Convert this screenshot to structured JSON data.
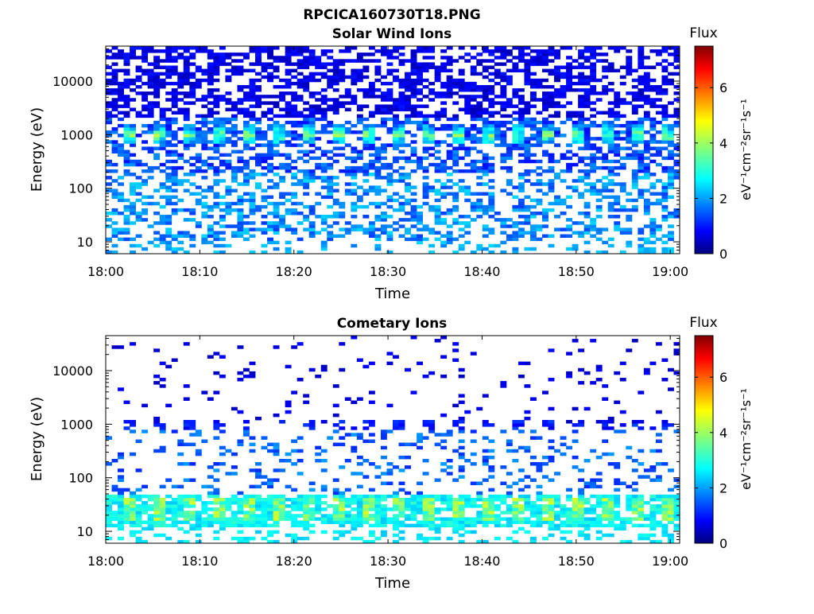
{
  "figure": {
    "title": "RPCICA160730T18.PNG"
  },
  "colorbar": {
    "label": "Flux",
    "units_text": "eV⁻¹cm⁻²sr⁻¹s⁻¹",
    "range": [
      0,
      7.5
    ],
    "ticks": [
      "0",
      "2",
      "4",
      "6"
    ],
    "tick_values": [
      0,
      2,
      4,
      6
    ],
    "colormap": "jet"
  },
  "chart_data": [
    {
      "type": "heatmap",
      "title": "Solar Wind Ions",
      "xlabel": "Time",
      "ylabel": "Energy (eV)",
      "x_range": [
        "18:00",
        "19:01"
      ],
      "x_ticks": [
        "18:00",
        "18:10",
        "18:20",
        "18:30",
        "18:40",
        "18:50",
        "19:00"
      ],
      "y_scale": "log",
      "y_range_eV": [
        6,
        45000
      ],
      "y_ticks": [
        "10",
        "100",
        "1000",
        "10000"
      ],
      "y_tick_values": [
        10,
        100,
        1000,
        10000
      ],
      "c_range": [
        0,
        7.5
      ],
      "features": {
        "solar_wind_peak_eV": 1000,
        "solar_wind_peak_flux": 4.0,
        "periodic_peak_interval_min": 3.2,
        "low_energy_band_eV": [
          10,
          60
        ],
        "low_energy_flux": 2.3,
        "background_flux_high_energy": 1.0
      }
    },
    {
      "type": "heatmap",
      "title": "Cometary Ions",
      "xlabel": "Time",
      "ylabel": "Energy (eV)",
      "x_range": [
        "18:00",
        "19:01"
      ],
      "x_ticks": [
        "18:00",
        "18:10",
        "18:20",
        "18:30",
        "18:40",
        "18:50",
        "19:00"
      ],
      "y_scale": "log",
      "y_range_eV": [
        6,
        45000
      ],
      "y_ticks": [
        "10",
        "100",
        "1000",
        "10000"
      ],
      "y_tick_values": [
        10,
        100,
        1000,
        10000
      ],
      "c_range": [
        0,
        7.5
      ],
      "features": {
        "cometary_peak_eV": 25,
        "cometary_peak_flux": 4.2,
        "periodic_peak_interval_min": 3.2,
        "secondary_band_eV": 1000,
        "secondary_band_flux": 1.2,
        "background_flux_high_energy": 0.9
      }
    }
  ]
}
